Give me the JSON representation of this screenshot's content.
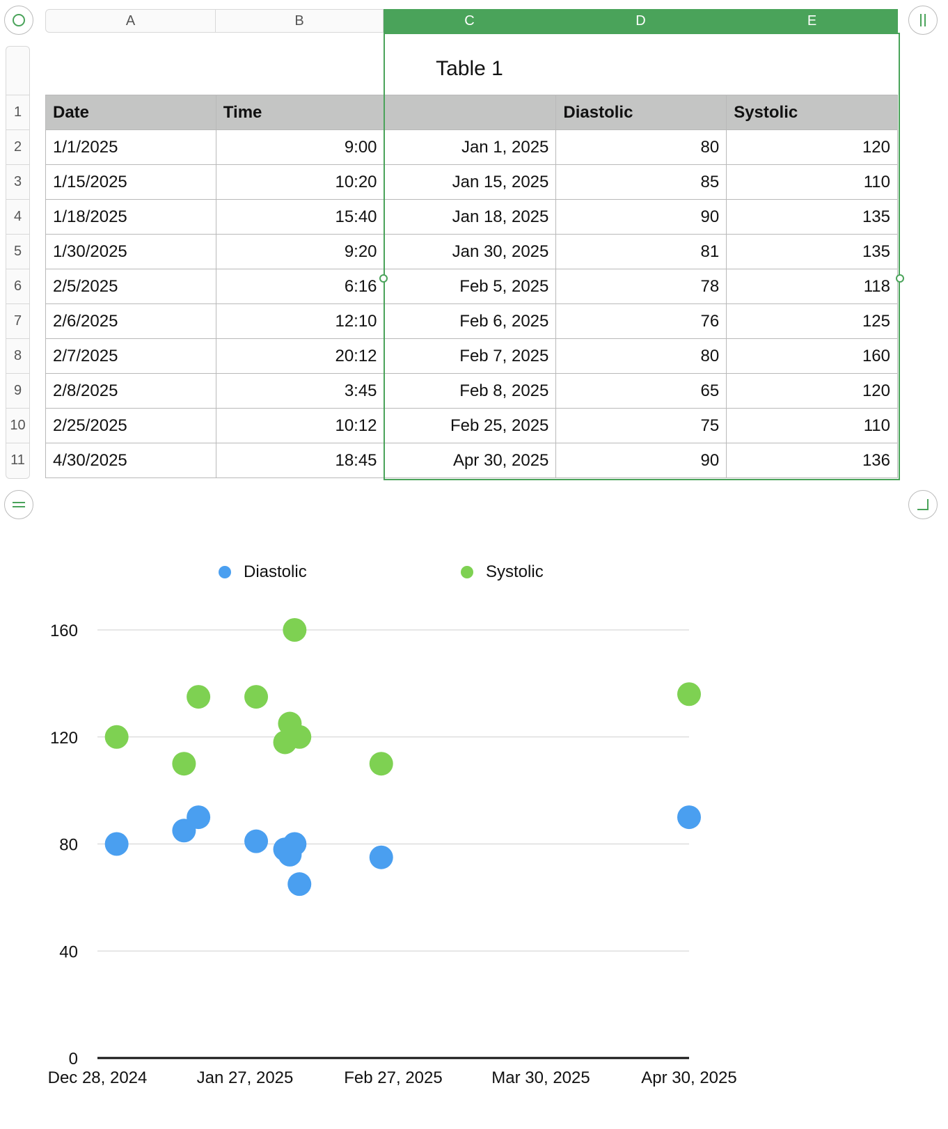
{
  "columns": [
    "A",
    "B",
    "C",
    "D",
    "E"
  ],
  "selected_columns": [
    "C",
    "D",
    "E"
  ],
  "rows": [
    "1",
    "2",
    "3",
    "4",
    "5",
    "6",
    "7",
    "8",
    "9",
    "10",
    "11"
  ],
  "table": {
    "title": "Table 1",
    "headers": [
      "Date",
      "Time",
      "",
      "Diastolic",
      "Systolic"
    ],
    "rows": [
      [
        "1/1/2025",
        "9:00",
        "Jan 1, 2025",
        "80",
        "120"
      ],
      [
        "1/15/2025",
        "10:20",
        "Jan 15, 2025",
        "85",
        "110"
      ],
      [
        "1/18/2025",
        "15:40",
        "Jan 18, 2025",
        "90",
        "135"
      ],
      [
        "1/30/2025",
        "9:20",
        "Jan 30, 2025",
        "81",
        "135"
      ],
      [
        "2/5/2025",
        "6:16",
        "Feb 5, 2025",
        "78",
        "118"
      ],
      [
        "2/6/2025",
        "12:10",
        "Feb 6, 2025",
        "76",
        "125"
      ],
      [
        "2/7/2025",
        "20:12",
        "Feb 7, 2025",
        "80",
        "160"
      ],
      [
        "2/8/2025",
        "3:45",
        "Feb 8, 2025",
        "65",
        "120"
      ],
      [
        "2/25/2025",
        "10:12",
        "Feb 25, 2025",
        "75",
        "110"
      ],
      [
        "4/30/2025",
        "18:45",
        "Apr 30, 2025",
        "90",
        "136"
      ]
    ]
  },
  "chart_data": {
    "type": "scatter",
    "x": [
      "2025-01-01",
      "2025-01-15",
      "2025-01-18",
      "2025-01-30",
      "2025-02-05",
      "2025-02-06",
      "2025-02-07",
      "2025-02-08",
      "2025-02-25",
      "2025-04-30"
    ],
    "series": [
      {
        "name": "Diastolic",
        "color": "#4a9ff0",
        "values": [
          80,
          85,
          90,
          81,
          78,
          76,
          80,
          65,
          75,
          90
        ]
      },
      {
        "name": "Systolic",
        "color": "#7ed152",
        "values": [
          120,
          110,
          135,
          135,
          118,
          125,
          160,
          120,
          110,
          136
        ]
      }
    ],
    "xlim": [
      "2024-12-28",
      "2025-04-30"
    ],
    "ylim": [
      0,
      160
    ],
    "yticks": [
      "0",
      "40",
      "80",
      "120",
      "160"
    ],
    "xticks": [
      "Dec 28, 2024",
      "Jan 27, 2025",
      "Feb 27, 2025",
      "Mar 30, 2025",
      "Apr 30, 2025"
    ],
    "grid": true,
    "legend": "top"
  },
  "icons": {
    "top_left": "circle-icon",
    "top_right": "pause-bars-icon",
    "bottom_left": "equals-icon",
    "bottom_right": "resize-corner-icon"
  }
}
